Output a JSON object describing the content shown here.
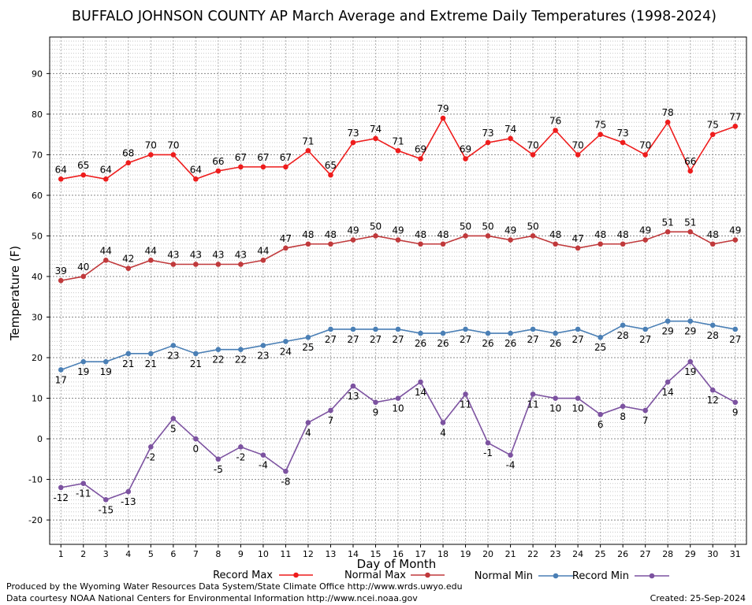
{
  "chart_data": {
    "type": "line",
    "title": "BUFFALO JOHNSON COUNTY AP March Average and Extreme Daily Temperatures (1998-2024)",
    "xlabel": "Day of Month",
    "ylabel": "Temperature (F)",
    "ylim": [
      -26,
      99
    ],
    "y_ticks": [
      -20,
      -10,
      0,
      10,
      20,
      30,
      40,
      50,
      60,
      70,
      80,
      90
    ],
    "x": [
      1,
      2,
      3,
      4,
      5,
      6,
      7,
      8,
      9,
      10,
      11,
      12,
      13,
      14,
      15,
      16,
      17,
      18,
      19,
      20,
      21,
      22,
      23,
      24,
      25,
      26,
      27,
      28,
      29,
      30,
      31
    ],
    "grid": true,
    "legend_position": "bottom",
    "series": [
      {
        "name": "Record Max",
        "color": "#ee1c1c",
        "label_position": "above",
        "values": [
          64,
          65,
          64,
          68,
          70,
          70,
          64,
          66,
          67,
          67,
          67,
          71,
          65,
          73,
          74,
          71,
          69,
          79,
          69,
          73,
          74,
          70,
          76,
          70,
          75,
          73,
          70,
          78,
          66,
          75,
          77
        ]
      },
      {
        "name": "Normal Max",
        "color": "#c0393b",
        "label_position": "above",
        "values": [
          39,
          40,
          44,
          42,
          44,
          43,
          43,
          43,
          43,
          44,
          47,
          48,
          48,
          49,
          50,
          49,
          48,
          48,
          50,
          50,
          49,
          50,
          48,
          47,
          48,
          48,
          49,
          51,
          51,
          48,
          49
        ]
      },
      {
        "name": "Normal Min",
        "color": "#4a7fb5",
        "label_position": "below",
        "values": [
          17,
          19,
          19,
          21,
          21,
          23,
          21,
          22,
          22,
          23,
          24,
          25,
          27,
          27,
          27,
          27,
          26,
          26,
          27,
          26,
          26,
          27,
          26,
          27,
          25,
          28,
          27,
          29,
          29,
          28,
          27
        ]
      },
      {
        "name": "Record Min",
        "color": "#7c52a0",
        "label_position": "below",
        "values": [
          -12,
          -11,
          -15,
          -13,
          -2,
          5,
          0,
          -5,
          -2,
          -4,
          -8,
          4,
          7,
          13,
          9,
          10,
          14,
          4,
          11,
          -1,
          -4,
          11,
          10,
          10,
          6,
          8,
          7,
          14,
          19,
          12,
          9
        ]
      }
    ]
  },
  "footer": {
    "producer": "Produced by the Wyoming Water Resources Data System/State Climate Office http://www.wrds.uwyo.edu",
    "courtesy": "Data courtesy NOAA National Centers for Environmental Information http://www.ncei.noaa.gov",
    "created": "Created:  25-Sep-2024"
  }
}
